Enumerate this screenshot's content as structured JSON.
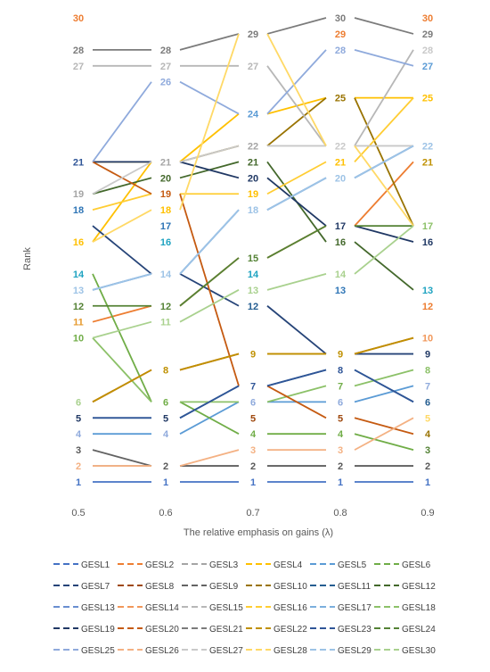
{
  "chart_data": {
    "type": "line",
    "xlabel": "The relative emphasis on gains  (λ)",
    "ylabel": "Rank",
    "x": [
      "0.5",
      "0.6",
      "0.7",
      "0.8",
      "0.9"
    ],
    "ylim": [
      1,
      30
    ],
    "grid": false,
    "legend_position": "bottom",
    "series": [
      {
        "name": "GESL1",
        "color": "#4472C4",
        "values": [
          1,
          1,
          1,
          1,
          1
        ]
      },
      {
        "name": "GESL2",
        "color": "#ED7D31",
        "values": [
          11,
          12,
          15,
          17,
          21
        ]
      },
      {
        "name": "GESL3",
        "color": "#A5A5A5",
        "values": [
          2,
          2,
          2,
          2,
          2
        ]
      },
      {
        "name": "GESL4",
        "color": "#FFC000",
        "values": [
          16,
          21,
          24,
          25,
          25
        ]
      },
      {
        "name": "GESL5",
        "color": "#5B9BD5",
        "values": [
          4,
          4,
          6,
          6,
          7
        ]
      },
      {
        "name": "GESL6",
        "color": "#70AD47",
        "values": [
          14,
          6,
          4,
          4,
          3
        ]
      },
      {
        "name": "GESL7",
        "color": "#264478",
        "values": [
          17,
          14,
          12,
          9,
          9
        ]
      },
      {
        "name": "GESL8",
        "color": "#9E480E",
        "values": [
          6,
          8,
          9,
          9,
          10
        ]
      },
      {
        "name": "GESL9",
        "color": "#636363",
        "values": [
          3,
          2,
          2,
          2,
          2
        ]
      },
      {
        "name": "GESL10",
        "color": "#997300",
        "values": [
          21,
          21,
          22,
          25,
          17
        ]
      },
      {
        "name": "GESL11",
        "color": "#255E91",
        "values": [
          5,
          5,
          7,
          8,
          6
        ]
      },
      {
        "name": "GESL12",
        "color": "#43682B",
        "values": [
          19,
          20,
          21,
          16,
          13
        ]
      },
      {
        "name": "GESL13",
        "color": "#698ED0",
        "values": [
          13,
          14,
          18,
          20,
          22
        ]
      },
      {
        "name": "GESL14",
        "color": "#F1975A",
        "values": [
          6,
          8,
          9,
          9,
          10
        ]
      },
      {
        "name": "GESL15",
        "color": "#B7B7B7",
        "values": [
          27,
          27,
          27,
          22,
          28
        ]
      },
      {
        "name": "GESL16",
        "color": "#FFCD33",
        "values": [
          18,
          19,
          19,
          21,
          25
        ]
      },
      {
        "name": "GESL17",
        "color": "#7CAFDD",
        "values": [
          13,
          14,
          18,
          20,
          22
        ]
      },
      {
        "name": "GESL18",
        "color": "#8CC168",
        "values": [
          10,
          6,
          6,
          7,
          8
        ]
      },
      {
        "name": "GESL19",
        "color": "#203864",
        "values": [
          21,
          21,
          20,
          17,
          16
        ]
      },
      {
        "name": "GESL20",
        "color": "#C55A11",
        "values": [
          21,
          19,
          7,
          5,
          4
        ]
      },
      {
        "name": "GESL21",
        "color": "#7B7B7B",
        "values": [
          28,
          28,
          29,
          30,
          29
        ]
      },
      {
        "name": "GESL22",
        "color": "#BF9000",
        "values": [
          6,
          8,
          9,
          9,
          10
        ]
      },
      {
        "name": "GESL23",
        "color": "#2F5597",
        "values": [
          5,
          5,
          7,
          8,
          6
        ]
      },
      {
        "name": "GESL24",
        "color": "#548235",
        "values": [
          12,
          12,
          15,
          17,
          17
        ]
      },
      {
        "name": "GESL25",
        "color": "#8FAADC",
        "values": [
          21,
          26,
          24,
          28,
          27
        ]
      },
      {
        "name": "GESL26",
        "color": "#F4B183",
        "values": [
          2,
          2,
          3,
          3,
          5
        ]
      },
      {
        "name": "GESL27",
        "color": "#C9C9C9",
        "values": [
          19,
          21,
          22,
          22,
          22
        ]
      },
      {
        "name": "GESL28",
        "color": "#FFD966",
        "values": [
          16,
          18,
          29,
          22,
          17
        ]
      },
      {
        "name": "GESL29",
        "color": "#9DC3E6",
        "values": [
          13,
          14,
          18,
          20,
          22
        ]
      },
      {
        "name": "GESL30",
        "color": "#A9D18E",
        "values": [
          10,
          11,
          13,
          14,
          17
        ]
      }
    ],
    "rank_labels": [
      {
        "x": 0,
        "rank": 30,
        "text": "30",
        "color": "#ED7D31"
      },
      {
        "x": 0,
        "rank": 28,
        "text": "28",
        "color": "#7B7B7B"
      },
      {
        "x": 0,
        "rank": 27,
        "text": "27",
        "color": "#B7B7B7"
      },
      {
        "x": 0,
        "rank": 21,
        "text": "21",
        "color": "#2F5597"
      },
      {
        "x": 0,
        "rank": 19,
        "text": "19",
        "color": "#A5A5A5"
      },
      {
        "x": 0,
        "rank": 18,
        "text": "18",
        "color": "#2E75B6"
      },
      {
        "x": 0,
        "rank": 16,
        "text": "16",
        "color": "#FFC000"
      },
      {
        "x": 0,
        "rank": 14,
        "text": "14",
        "color": "#1FA3C1"
      },
      {
        "x": 0,
        "rank": 13,
        "text": "13",
        "color": "#9DC3E6"
      },
      {
        "x": 0,
        "rank": 12,
        "text": "12",
        "color": "#548235"
      },
      {
        "x": 0,
        "rank": 11,
        "text": "11",
        "color": "#E69A2E"
      },
      {
        "x": 0,
        "rank": 10,
        "text": "10",
        "color": "#70AD47"
      },
      {
        "x": 0,
        "rank": 6,
        "text": "6",
        "color": "#A9D18E"
      },
      {
        "x": 0,
        "rank": 5,
        "text": "5",
        "color": "#203864"
      },
      {
        "x": 0,
        "rank": 4,
        "text": "4",
        "color": "#8FAADC"
      },
      {
        "x": 0,
        "rank": 3,
        "text": "3",
        "color": "#595959"
      },
      {
        "x": 0,
        "rank": 2,
        "text": "2",
        "color": "#F4B183"
      },
      {
        "x": 0,
        "rank": 1,
        "text": "1",
        "color": "#4472C4"
      },
      {
        "x": 1,
        "rank": 28,
        "text": "28",
        "color": "#7B7B7B"
      },
      {
        "x": 1,
        "rank": 27,
        "text": "27",
        "color": "#B7B7B7"
      },
      {
        "x": 1,
        "rank": 26,
        "text": "26",
        "color": "#8FAADC"
      },
      {
        "x": 1,
        "rank": 21,
        "text": "21",
        "color": "#A5A5A5"
      },
      {
        "x": 1,
        "rank": 20,
        "text": "20",
        "color": "#43682B"
      },
      {
        "x": 1,
        "rank": 19,
        "text": "19",
        "color": "#C55A11"
      },
      {
        "x": 1,
        "rank": 18,
        "text": "18",
        "color": "#FFC000"
      },
      {
        "x": 1,
        "rank": 17,
        "text": "17",
        "color": "#2E75B6"
      },
      {
        "x": 1,
        "rank": 16,
        "text": "16",
        "color": "#1FA3C1"
      },
      {
        "x": 1,
        "rank": 14,
        "text": "14",
        "color": "#9DC3E6"
      },
      {
        "x": 1,
        "rank": 12,
        "text": "12",
        "color": "#548235"
      },
      {
        "x": 1,
        "rank": 11,
        "text": "11",
        "color": "#A9D18E"
      },
      {
        "x": 1,
        "rank": 8,
        "text": "8",
        "color": "#BF9000"
      },
      {
        "x": 1,
        "rank": 6,
        "text": "6",
        "color": "#70AD47"
      },
      {
        "x": 1,
        "rank": 5,
        "text": "5",
        "color": "#203864"
      },
      {
        "x": 1,
        "rank": 4,
        "text": "4",
        "color": "#8FAADC"
      },
      {
        "x": 1,
        "rank": 2,
        "text": "2",
        "color": "#595959"
      },
      {
        "x": 1,
        "rank": 1,
        "text": "1",
        "color": "#4472C4"
      },
      {
        "x": 2,
        "rank": 29,
        "text": "29",
        "color": "#7B7B7B"
      },
      {
        "x": 2,
        "rank": 27,
        "text": "27",
        "color": "#B7B7B7"
      },
      {
        "x": 2,
        "rank": 24,
        "text": "24",
        "color": "#5B9BD5"
      },
      {
        "x": 2,
        "rank": 22,
        "text": "22",
        "color": "#A5A5A5"
      },
      {
        "x": 2,
        "rank": 21,
        "text": "21",
        "color": "#43682B"
      },
      {
        "x": 2,
        "rank": 20,
        "text": "20",
        "color": "#203864"
      },
      {
        "x": 2,
        "rank": 19,
        "text": "19",
        "color": "#FFC000"
      },
      {
        "x": 2,
        "rank": 18,
        "text": "18",
        "color": "#9DC3E6"
      },
      {
        "x": 2,
        "rank": 15,
        "text": "15",
        "color": "#548235"
      },
      {
        "x": 2,
        "rank": 14,
        "text": "14",
        "color": "#1FA3C1"
      },
      {
        "x": 2,
        "rank": 13,
        "text": "13",
        "color": "#A9D18E"
      },
      {
        "x": 2,
        "rank": 12,
        "text": "12",
        "color": "#255E91"
      },
      {
        "x": 2,
        "rank": 9,
        "text": "9",
        "color": "#BF9000"
      },
      {
        "x": 2,
        "rank": 7,
        "text": "7",
        "color": "#2F5597"
      },
      {
        "x": 2,
        "rank": 6,
        "text": "6",
        "color": "#8FAADC"
      },
      {
        "x": 2,
        "rank": 5,
        "text": "5",
        "color": "#9E480E"
      },
      {
        "x": 2,
        "rank": 4,
        "text": "4",
        "color": "#70AD47"
      },
      {
        "x": 2,
        "rank": 3,
        "text": "3",
        "color": "#F4B183"
      },
      {
        "x": 2,
        "rank": 2,
        "text": "2",
        "color": "#595959"
      },
      {
        "x": 2,
        "rank": 1,
        "text": "1",
        "color": "#4472C4"
      },
      {
        "x": 3,
        "rank": 30,
        "text": "30",
        "color": "#7B7B7B"
      },
      {
        "x": 3,
        "rank": 29,
        "text": "29",
        "color": "#ED7D31"
      },
      {
        "x": 3,
        "rank": 28,
        "text": "28",
        "color": "#8FAADC"
      },
      {
        "x": 3,
        "rank": 25,
        "text": "25",
        "color": "#997300"
      },
      {
        "x": 3,
        "rank": 22,
        "text": "22",
        "color": "#C9C9C9"
      },
      {
        "x": 3,
        "rank": 21,
        "text": "21",
        "color": "#FFC000"
      },
      {
        "x": 3,
        "rank": 20,
        "text": "20",
        "color": "#9DC3E6"
      },
      {
        "x": 3,
        "rank": 17,
        "text": "17",
        "color": "#203864"
      },
      {
        "x": 3,
        "rank": 16,
        "text": "16",
        "color": "#43682B"
      },
      {
        "x": 3,
        "rank": 14,
        "text": "14",
        "color": "#A9D18E"
      },
      {
        "x": 3,
        "rank": 13,
        "text": "13",
        "color": "#2E75B6"
      },
      {
        "x": 3,
        "rank": 9,
        "text": "9",
        "color": "#BF9000"
      },
      {
        "x": 3,
        "rank": 8,
        "text": "8",
        "color": "#2F5597"
      },
      {
        "x": 3,
        "rank": 7,
        "text": "7",
        "color": "#70AD47"
      },
      {
        "x": 3,
        "rank": 6,
        "text": "6",
        "color": "#8FAADC"
      },
      {
        "x": 3,
        "rank": 5,
        "text": "5",
        "color": "#9E480E"
      },
      {
        "x": 3,
        "rank": 4,
        "text": "4",
        "color": "#70AD47"
      },
      {
        "x": 3,
        "rank": 3,
        "text": "3",
        "color": "#F4B183"
      },
      {
        "x": 3,
        "rank": 2,
        "text": "2",
        "color": "#595959"
      },
      {
        "x": 3,
        "rank": 1,
        "text": "1",
        "color": "#4472C4"
      },
      {
        "x": 4,
        "rank": 30,
        "text": "30",
        "color": "#ED7D31"
      },
      {
        "x": 4,
        "rank": 29,
        "text": "29",
        "color": "#7B7B7B"
      },
      {
        "x": 4,
        "rank": 28,
        "text": "28",
        "color": "#C9C9C9"
      },
      {
        "x": 4,
        "rank": 27,
        "text": "27",
        "color": "#5B9BD5"
      },
      {
        "x": 4,
        "rank": 25,
        "text": "25",
        "color": "#FFC000"
      },
      {
        "x": 4,
        "rank": 22,
        "text": "22",
        "color": "#9DC3E6"
      },
      {
        "x": 4,
        "rank": 21,
        "text": "21",
        "color": "#BF9000"
      },
      {
        "x": 4,
        "rank": 17,
        "text": "17",
        "color": "#8CC168"
      },
      {
        "x": 4,
        "rank": 16,
        "text": "16",
        "color": "#203864"
      },
      {
        "x": 4,
        "rank": 13,
        "text": "13",
        "color": "#1FA3C1"
      },
      {
        "x": 4,
        "rank": 12,
        "text": "12",
        "color": "#ED7D31"
      },
      {
        "x": 4,
        "rank": 10,
        "text": "10",
        "color": "#F1975A"
      },
      {
        "x": 4,
        "rank": 9,
        "text": "9",
        "color": "#203864"
      },
      {
        "x": 4,
        "rank": 8,
        "text": "8",
        "color": "#8CC168"
      },
      {
        "x": 4,
        "rank": 7,
        "text": "7",
        "color": "#8FAADC"
      },
      {
        "x": 4,
        "rank": 6,
        "text": "6",
        "color": "#255E91"
      },
      {
        "x": 4,
        "rank": 5,
        "text": "5",
        "color": "#FFD966"
      },
      {
        "x": 4,
        "rank": 4,
        "text": "4",
        "color": "#997300"
      },
      {
        "x": 4,
        "rank": 3,
        "text": "3",
        "color": "#548235"
      },
      {
        "x": 4,
        "rank": 2,
        "text": "2",
        "color": "#595959"
      },
      {
        "x": 4,
        "rank": 1,
        "text": "1",
        "color": "#4472C4"
      }
    ]
  }
}
